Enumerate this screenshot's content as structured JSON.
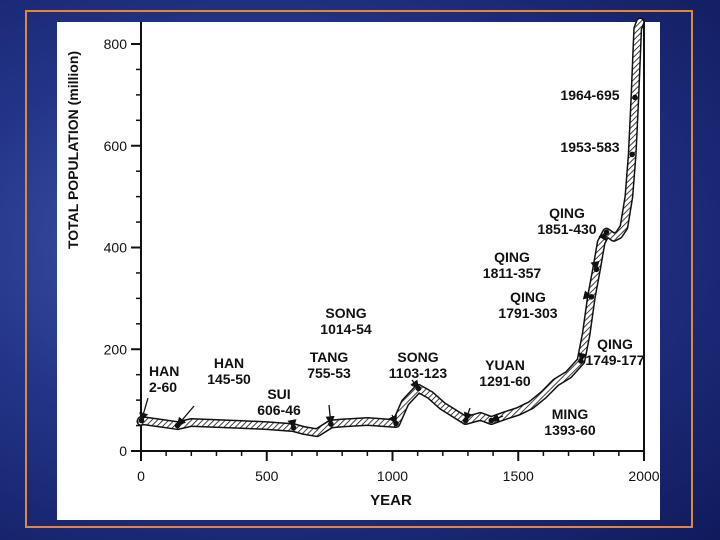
{
  "chart_data": {
    "type": "line",
    "xlabel": "YEAR",
    "ylabel": "TOTAL POPULATION (million)",
    "xlim": [
      0,
      2000
    ],
    "ylim": [
      0,
      800
    ],
    "x_ticks": [
      "0",
      "500",
      "1000",
      "1500",
      "2000"
    ],
    "y_ticks": [
      "0",
      "200",
      "400",
      "600",
      "800"
    ],
    "x_tick_values": [
      0,
      500,
      1000,
      1500,
      2000
    ],
    "y_tick_values": [
      0,
      200,
      400,
      600,
      800
    ],
    "grid": false,
    "series": [
      {
        "x": [
          0,
          2,
          60,
          145,
          200,
          300,
          400,
          500,
          606,
          650,
          700,
          755,
          800,
          900,
          1014,
          1050,
          1103,
          1150,
          1200,
          1291,
          1350,
          1393,
          1450,
          1500,
          1550,
          1600,
          1650,
          1700,
          1749,
          1770,
          1791,
          1811,
          1830,
          1851,
          1880,
          1900,
          1920,
          1940,
          1953,
          1964,
          1975,
          1985
        ],
        "y": [
          58,
          60,
          56,
          50,
          56,
          54,
          52,
          50,
          46,
          40,
          36,
          53,
          55,
          58,
          54,
          95,
          123,
          110,
          88,
          60,
          68,
          60,
          70,
          78,
          90,
          110,
          135,
          150,
          177,
          230,
          303,
          357,
          410,
          430,
          420,
          425,
          440,
          500,
          583,
          695,
          830,
          900
        ]
      }
    ],
    "annotations": [
      {
        "label": "HAN",
        "value": "2-60",
        "x": 2,
        "y": 60
      },
      {
        "label": "HAN",
        "value": "145-50",
        "x": 145,
        "y": 50
      },
      {
        "label": "SUI",
        "value": "606-46",
        "x": 606,
        "y": 46
      },
      {
        "label": "TANG",
        "value": "755-53",
        "x": 755,
        "y": 53
      },
      {
        "label": "SONG",
        "value": "1014-54",
        "x": 1014,
        "y": 54
      },
      {
        "label": "SONG",
        "value": "1103-123",
        "x": 1103,
        "y": 123
      },
      {
        "label": "YUAN",
        "value": "1291-60",
        "x": 1291,
        "y": 60
      },
      {
        "label": "MING",
        "value": "1393-60",
        "x": 1393,
        "y": 60
      },
      {
        "label": "QING",
        "value": "1749-177",
        "x": 1749,
        "y": 177
      },
      {
        "label": "QING",
        "value": "1791-303",
        "x": 1791,
        "y": 303
      },
      {
        "label": "QING",
        "value": "1811-357",
        "x": 1811,
        "y": 357
      },
      {
        "label": "QING",
        "value": "1851-430",
        "x": 1851,
        "y": 430
      },
      {
        "label": "",
        "value": "1953-583",
        "x": 1953,
        "y": 583
      },
      {
        "label": "",
        "value": "1964-695",
        "x": 1964,
        "y": 695
      }
    ]
  }
}
